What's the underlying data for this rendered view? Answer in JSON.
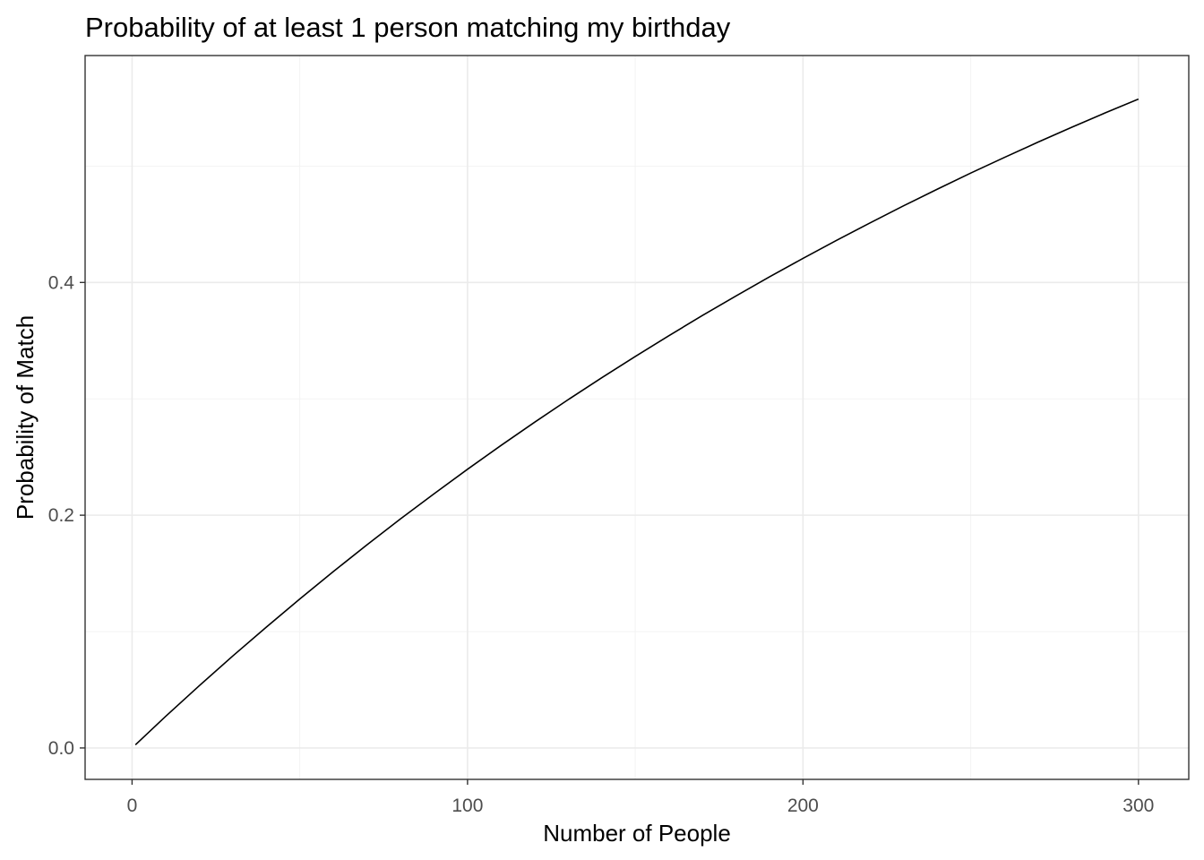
{
  "chart_data": {
    "type": "line",
    "title": "Probability of at least 1 person matching my birthday",
    "xlabel": "Number of People",
    "ylabel": "Probability of Match",
    "xlim": [
      -14,
      315
    ],
    "ylim": [
      -0.027,
      0.595
    ],
    "x_ticks": [
      0,
      100,
      200,
      300
    ],
    "x_tick_labels": [
      "0",
      "100",
      "200",
      "300"
    ],
    "y_ticks": [
      0.0,
      0.2,
      0.4
    ],
    "y_tick_labels": [
      "0.0",
      "0.2",
      "0.4"
    ],
    "x_minor": [
      50,
      150,
      250
    ],
    "y_minor": [
      0.1,
      0.3,
      0.5
    ],
    "grid": true,
    "legend": "none",
    "series": [
      {
        "color": "#000000",
        "x": [
          1,
          10,
          20,
          30,
          40,
          50,
          60,
          70,
          80,
          90,
          100,
          110,
          120,
          130,
          140,
          150,
          160,
          170,
          180,
          190,
          200,
          210,
          220,
          230,
          240,
          250,
          260,
          270,
          280,
          290,
          300
        ],
        "y": [
          0.0027,
          0.0271,
          0.0534,
          0.079,
          0.1038,
          0.128,
          0.1516,
          0.1745,
          0.1968,
          0.2184,
          0.2395,
          0.26,
          0.2799,
          0.2993,
          0.3181,
          0.3364,
          0.3542,
          0.3716,
          0.3884,
          0.4048,
          0.4207,
          0.4362,
          0.4512,
          0.4659,
          0.4801,
          0.494,
          0.5074,
          0.5205,
          0.5332,
          0.5456,
          0.5576
        ]
      }
    ]
  }
}
